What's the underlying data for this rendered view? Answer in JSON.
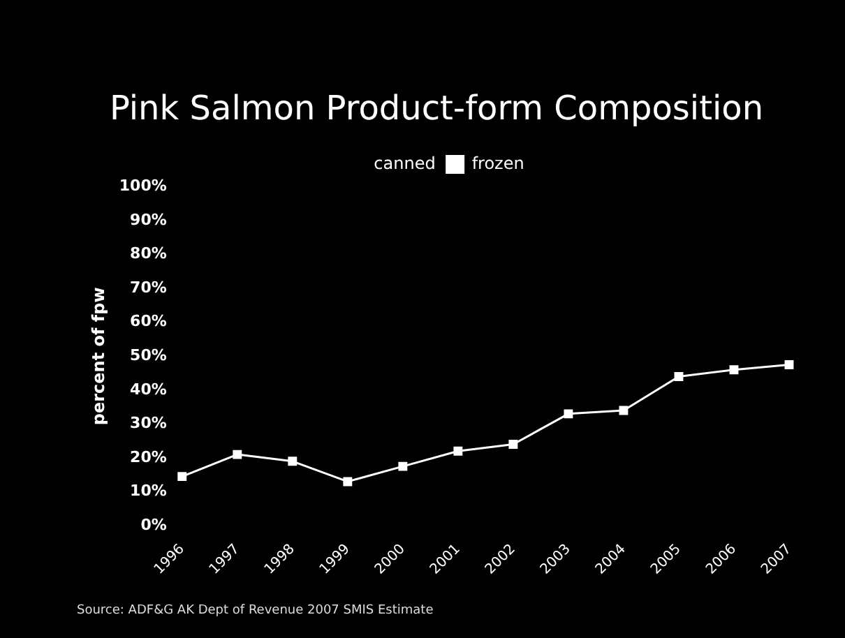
{
  "chart_data": {
    "type": "line",
    "title": "Pink Salmon Product-form Composition",
    "ylabel": "percent of fpw",
    "categories": [
      "1996",
      "1997",
      "1998",
      "1999",
      "2000",
      "2001",
      "2002",
      "2003",
      "2004",
      "2005",
      "2006",
      "2007"
    ],
    "series": [
      {
        "name": "canned",
        "values": [
          null,
          null,
          null,
          null,
          null,
          null,
          null,
          null,
          null,
          null,
          null,
          null
        ]
      },
      {
        "name": "frozen",
        "color": "#ffffff",
        "values": [
          14.5,
          21,
          19,
          13,
          17.5,
          22,
          24,
          33,
          34,
          44,
          46,
          47.5
        ]
      }
    ],
    "ylim": [
      0,
      100
    ],
    "yticks": [
      {
        "value": 0,
        "label": "0%"
      },
      {
        "value": 10,
        "label": "10%"
      },
      {
        "value": 20,
        "label": "20%"
      },
      {
        "value": 30,
        "label": "30%"
      },
      {
        "value": 40,
        "label": "40%"
      },
      {
        "value": 50,
        "label": "50%"
      },
      {
        "value": 60,
        "label": "60%"
      },
      {
        "value": 70,
        "label": "70%"
      },
      {
        "value": 80,
        "label": "80%"
      },
      {
        "value": 90,
        "label": "90%"
      },
      {
        "value": 100,
        "label": "100%"
      }
    ],
    "grid": false,
    "legend": "top",
    "marker": "square",
    "line_style": "solid",
    "annotations": [
      "Source: ADF&G AK Dept of Revenue 2007 SMIS Estimate"
    ]
  }
}
